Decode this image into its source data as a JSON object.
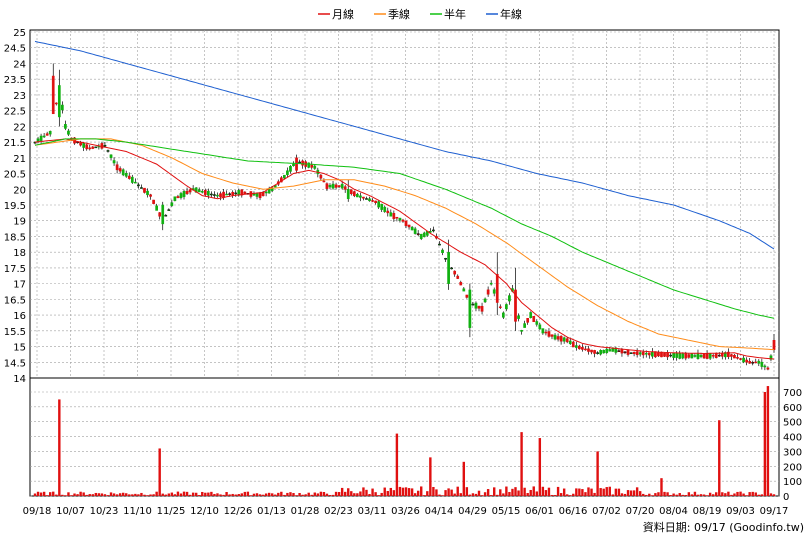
{
  "chart_data": {
    "type": "candlestick",
    "legend": [
      {
        "name": "月線",
        "color": "#e01010"
      },
      {
        "name": "季線",
        "color": "#ff8c1a"
      },
      {
        "name": "半年",
        "color": "#10c010"
      },
      {
        "name": "年線",
        "color": "#1e5fd0"
      }
    ],
    "price_axis": {
      "ylim": [
        14,
        25
      ],
      "ticks": [
        "25",
        "24.5",
        "24",
        "23.5",
        "23",
        "22.5",
        "22",
        "21.5",
        "21",
        "20.5",
        "20",
        "19.5",
        "19",
        "18.5",
        "18",
        "17.5",
        "17",
        "16.5",
        "16",
        "15.5",
        "15",
        "14.5",
        "14"
      ]
    },
    "volume_axis": {
      "ylim": [
        0,
        700
      ],
      "ticks": [
        "700",
        "600",
        "500",
        "400",
        "300",
        "200",
        "100",
        "0"
      ]
    },
    "x_ticks": [
      "09/18",
      "10/07",
      "10/23",
      "11/10",
      "11/25",
      "12/10",
      "12/26",
      "01/13",
      "01/28",
      "02/23",
      "03/11",
      "03/26",
      "04/14",
      "04/29",
      "05/15",
      "06/01",
      "06/16",
      "07/02",
      "07/20",
      "08/04",
      "08/19",
      "09/03",
      "09/17"
    ],
    "footer_text": "資料日期: 09/17  (Goodinfo.tw)",
    "colors": {
      "up": "#e01010",
      "down": "#10b010",
      "volume": "#e01010",
      "grid": "#a0a0a0"
    },
    "ma_month": [
      [
        0,
        21.5
      ],
      [
        10,
        21.6
      ],
      [
        20,
        21.4
      ],
      [
        30,
        21.2
      ],
      [
        40,
        20.8
      ],
      [
        50,
        20.1
      ],
      [
        55,
        19.8
      ],
      [
        60,
        19.7
      ],
      [
        65,
        19.8
      ],
      [
        70,
        19.85
      ],
      [
        75,
        19.9
      ],
      [
        80,
        20.2
      ],
      [
        85,
        20.5
      ],
      [
        90,
        20.6
      ],
      [
        95,
        20.5
      ],
      [
        100,
        20.3
      ],
      [
        105,
        20.0
      ],
      [
        110,
        19.8
      ],
      [
        120,
        19.3
      ],
      [
        130,
        18.6
      ],
      [
        140,
        18.0
      ],
      [
        148,
        17.6
      ],
      [
        155,
        17.0
      ],
      [
        160,
        16.4
      ],
      [
        165,
        16.0
      ],
      [
        170,
        15.6
      ],
      [
        175,
        15.3
      ],
      [
        180,
        15.1
      ],
      [
        185,
        15.0
      ],
      [
        190,
        14.95
      ],
      [
        200,
        14.85
      ],
      [
        210,
        14.8
      ],
      [
        220,
        14.78
      ],
      [
        230,
        14.8
      ],
      [
        234,
        14.7
      ],
      [
        238,
        14.65
      ],
      [
        243,
        14.6
      ]
    ],
    "ma_quarter": [
      [
        0,
        21.4
      ],
      [
        15,
        21.6
      ],
      [
        25,
        21.6
      ],
      [
        35,
        21.4
      ],
      [
        45,
        21.0
      ],
      [
        55,
        20.5
      ],
      [
        65,
        20.2
      ],
      [
        75,
        20.0
      ],
      [
        85,
        20.1
      ],
      [
        95,
        20.3
      ],
      [
        105,
        20.3
      ],
      [
        115,
        20.1
      ],
      [
        125,
        19.8
      ],
      [
        135,
        19.4
      ],
      [
        145,
        18.9
      ],
      [
        155,
        18.3
      ],
      [
        165,
        17.6
      ],
      [
        175,
        16.9
      ],
      [
        185,
        16.3
      ],
      [
        195,
        15.8
      ],
      [
        205,
        15.4
      ],
      [
        215,
        15.2
      ],
      [
        225,
        15.0
      ],
      [
        235,
        14.95
      ],
      [
        243,
        14.9
      ]
    ],
    "ma_half": [
      [
        0,
        21.4
      ],
      [
        10,
        21.6
      ],
      [
        20,
        21.6
      ],
      [
        30,
        21.5
      ],
      [
        50,
        21.2
      ],
      [
        70,
        20.9
      ],
      [
        90,
        20.8
      ],
      [
        105,
        20.7
      ],
      [
        120,
        20.5
      ],
      [
        135,
        20.0
      ],
      [
        150,
        19.4
      ],
      [
        160,
        18.9
      ],
      [
        170,
        18.5
      ],
      [
        180,
        18.0
      ],
      [
        190,
        17.6
      ],
      [
        200,
        17.2
      ],
      [
        210,
        16.8
      ],
      [
        220,
        16.5
      ],
      [
        230,
        16.2
      ],
      [
        238,
        16.0
      ],
      [
        243,
        15.9
      ]
    ],
    "ma_year": [
      [
        0,
        24.7
      ],
      [
        15,
        24.4
      ],
      [
        30,
        24.0
      ],
      [
        45,
        23.6
      ],
      [
        60,
        23.2
      ],
      [
        75,
        22.8
      ],
      [
        90,
        22.4
      ],
      [
        105,
        22.0
      ],
      [
        120,
        21.6
      ],
      [
        135,
        21.2
      ],
      [
        150,
        20.9
      ],
      [
        165,
        20.5
      ],
      [
        180,
        20.2
      ],
      [
        195,
        19.8
      ],
      [
        210,
        19.5
      ],
      [
        225,
        19.0
      ],
      [
        235,
        18.6
      ],
      [
        243,
        18.1
      ]
    ],
    "price_key": [
      [
        0,
        21.5
      ],
      [
        5,
        21.8
      ],
      [
        8,
        23.2
      ],
      [
        10,
        22.0
      ],
      [
        12,
        21.6
      ],
      [
        18,
        21.3
      ],
      [
        23,
        21.4
      ],
      [
        27,
        20.7
      ],
      [
        32,
        20.3
      ],
      [
        38,
        19.8
      ],
      [
        42,
        19.0
      ],
      [
        46,
        19.7
      ],
      [
        52,
        20.0
      ],
      [
        60,
        19.8
      ],
      [
        68,
        19.9
      ],
      [
        74,
        19.8
      ],
      [
        78,
        20.0
      ],
      [
        82,
        20.4
      ],
      [
        86,
        20.9
      ],
      [
        92,
        20.7
      ],
      [
        96,
        20.1
      ],
      [
        101,
        20.1
      ],
      [
        106,
        19.8
      ],
      [
        112,
        19.6
      ],
      [
        117,
        19.2
      ],
      [
        121,
        19.0
      ],
      [
        127,
        18.5
      ],
      [
        131,
        18.7
      ],
      [
        135,
        17.8
      ],
      [
        139,
        17.2
      ],
      [
        143,
        16.4
      ],
      [
        147,
        16.2
      ],
      [
        150,
        17.0
      ],
      [
        154,
        16.0
      ],
      [
        157,
        16.8
      ],
      [
        160,
        15.5
      ],
      [
        163,
        16.0
      ],
      [
        167,
        15.5
      ],
      [
        171,
        15.3
      ],
      [
        175,
        15.2
      ],
      [
        178,
        15.0
      ],
      [
        185,
        14.8
      ],
      [
        190,
        14.9
      ],
      [
        196,
        14.8
      ],
      [
        205,
        14.75
      ],
      [
        213,
        14.7
      ],
      [
        222,
        14.7
      ],
      [
        228,
        14.75
      ],
      [
        235,
        14.5
      ],
      [
        238,
        14.5
      ],
      [
        241,
        14.3
      ],
      [
        243,
        15.0
      ]
    ],
    "big_candles": [
      [
        6,
        22.4,
        23.6,
        22.4,
        24.0
      ],
      [
        8,
        23.3,
        22.3,
        22.0,
        23.8
      ],
      [
        42,
        19.5,
        18.9,
        18.7,
        19.6
      ],
      [
        86,
        20.6,
        21.0,
        20.5,
        21.1
      ],
      [
        103,
        20.0,
        19.7,
        19.6,
        20.3
      ],
      [
        136,
        18.0,
        17.0,
        16.8,
        18.4
      ],
      [
        143,
        16.8,
        15.6,
        15.3,
        17.0
      ],
      [
        152,
        16.4,
        17.3,
        16.0,
        18.0
      ],
      [
        158,
        15.8,
        16.8,
        15.5,
        17.5
      ],
      [
        243,
        14.9,
        15.2,
        14.8,
        15.4
      ]
    ],
    "big_volumes": [
      [
        8,
        650
      ],
      [
        41,
        320
      ],
      [
        119,
        420
      ],
      [
        130,
        260
      ],
      [
        141,
        230
      ],
      [
        160,
        430
      ],
      [
        166,
        390
      ],
      [
        185,
        300
      ],
      [
        206,
        120
      ],
      [
        225,
        510
      ],
      [
        240,
        700
      ],
      [
        241,
        740
      ]
    ]
  }
}
